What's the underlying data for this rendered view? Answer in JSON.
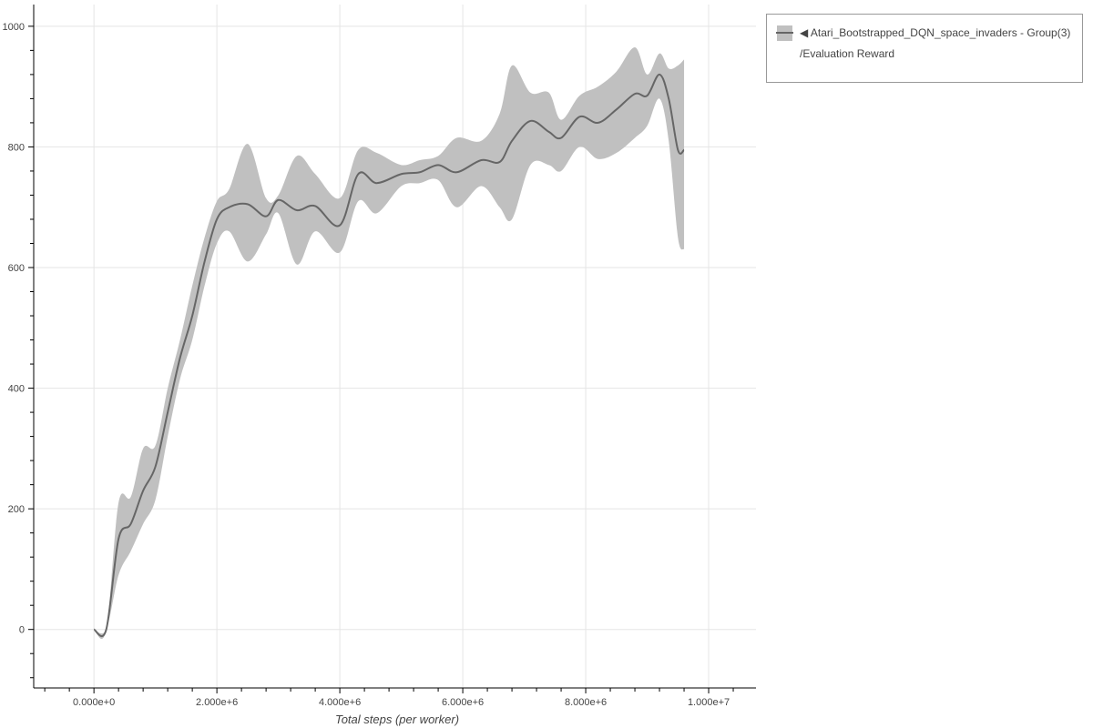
{
  "chart_data": {
    "type": "line",
    "title": "",
    "xlabel": "Total steps (per worker)",
    "ylabel": "",
    "xlim": [
      -980000,
      10770000
    ],
    "ylim": [
      -97,
      1036
    ],
    "grid": true,
    "legend_position": "outside-top-right",
    "x_ticks": [
      0,
      2000000,
      4000000,
      6000000,
      8000000,
      10000000
    ],
    "x_tick_labels": [
      "0.000e+0",
      "2.000e+6",
      "4.000e+6",
      "6.000e+6",
      "8.000e+6",
      "1.000e+7"
    ],
    "y_ticks": [
      0,
      200,
      400,
      600,
      800,
      1000
    ],
    "y_tick_labels": [
      "0",
      "200",
      "400",
      "600",
      "800",
      "1000"
    ],
    "colors": {
      "line": "#666666",
      "band": "#c0c0c0",
      "grid": "#e5e5e5",
      "axis": "#000000"
    },
    "series": [
      {
        "name": "◀ Atari_Bootstrapped_DQN_space_invaders - Group(3) /Evaluation Reward",
        "x": [
          0,
          200000,
          400000,
          600000,
          800000,
          1000000,
          1200000,
          1400000,
          1600000,
          1800000,
          2000000,
          2200000,
          2500000,
          2800000,
          3000000,
          3300000,
          3600000,
          4000000,
          4300000,
          4600000,
          5000000,
          5300000,
          5600000,
          5900000,
          6300000,
          6600000,
          6800000,
          7100000,
          7400000,
          7600000,
          7900000,
          8200000,
          8500000,
          8800000,
          9000000,
          9200000,
          9350000,
          9500000,
          9600000
        ],
        "mean": [
          0,
          0,
          150,
          175,
          230,
          270,
          360,
          450,
          520,
          610,
          680,
          700,
          705,
          685,
          712,
          695,
          702,
          670,
          755,
          740,
          755,
          758,
          770,
          758,
          778,
          775,
          810,
          843,
          825,
          815,
          850,
          840,
          862,
          888,
          885,
          920,
          880,
          795,
          795
        ],
        "lower": [
          0,
          0,
          90,
          130,
          175,
          215,
          320,
          415,
          480,
          570,
          640,
          660,
          610,
          655,
          690,
          605,
          660,
          625,
          710,
          690,
          735,
          740,
          745,
          700,
          735,
          700,
          680,
          770,
          770,
          760,
          800,
          780,
          790,
          815,
          835,
          880,
          810,
          650,
          630
        ],
        "upper": [
          0,
          0,
          210,
          220,
          300,
          305,
          400,
          480,
          570,
          650,
          710,
          730,
          805,
          715,
          720,
          785,
          755,
          715,
          795,
          790,
          770,
          778,
          785,
          815,
          810,
          855,
          935,
          890,
          890,
          845,
          885,
          900,
          925,
          965,
          920,
          955,
          930,
          935,
          945
        ]
      }
    ]
  },
  "legend": {
    "line1": "◀ Atari_Bootstrapped_DQN_space_invaders - Group(3)",
    "line2": "/Evaluation Reward"
  }
}
